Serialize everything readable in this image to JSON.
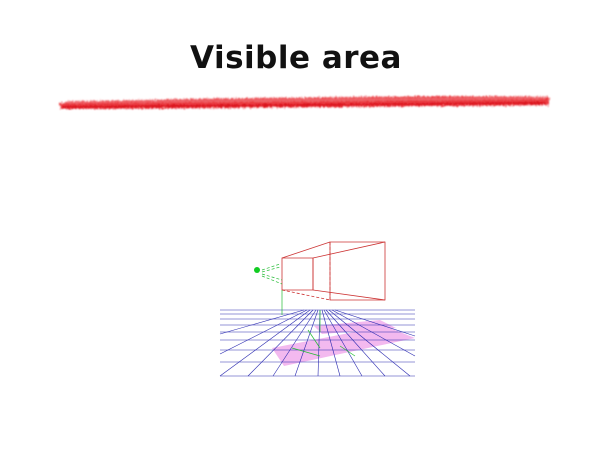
{
  "slide": {
    "title": "Visible area"
  },
  "colors": {
    "highlight": "#e8141e",
    "frustum": "#cc3333",
    "grid": "#2a2ab0",
    "floor_fill": "#f2b2ee",
    "sight": "#22bb33",
    "eye": "#11cc22"
  },
  "icons": {
    "brush_stroke": "red-brush-underline",
    "eye": "camera-eye-point"
  }
}
